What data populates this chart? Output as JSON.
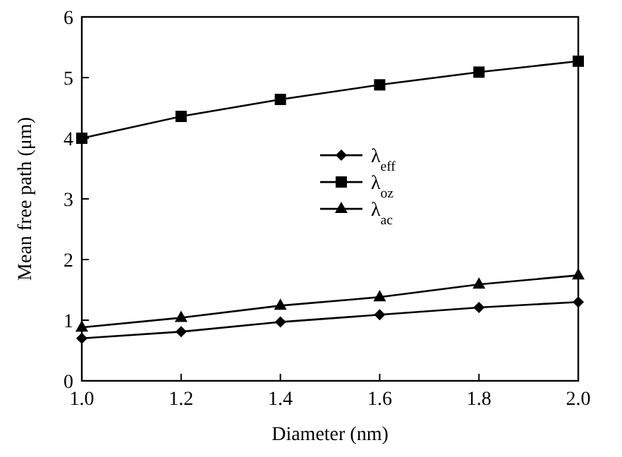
{
  "chart_data": {
    "type": "line",
    "xlabel": "Diameter (nm)",
    "ylabel": "Mean free path (μm)",
    "x": [
      1.0,
      1.2,
      1.4,
      1.6,
      1.8,
      2.0
    ],
    "xlim": [
      1.0,
      2.0
    ],
    "xticks": [
      {
        "value": 1.0,
        "label": "1.0"
      },
      {
        "value": 1.2,
        "label": "1.2"
      },
      {
        "value": 1.4,
        "label": "1.4"
      },
      {
        "value": 1.6,
        "label": "1.6"
      },
      {
        "value": 1.8,
        "label": "1.8"
      },
      {
        "value": 2.0,
        "label": "2.0"
      }
    ],
    "ylim": [
      0,
      6
    ],
    "yticks": [
      0,
      1,
      2,
      3,
      4,
      5,
      6
    ],
    "series": [
      {
        "name": "λ$_{eff}$",
        "color": "#000000",
        "marker": "diamond",
        "values": [
          0.7,
          0.81,
          0.97,
          1.09,
          1.21,
          1.3
        ]
      },
      {
        "name": "λ$_{oz}$",
        "color": "#000000",
        "marker": "square",
        "values": [
          4.0,
          4.36,
          4.64,
          4.88,
          5.09,
          5.27
        ]
      },
      {
        "name": "λ$_{ac}$",
        "color": "#000000",
        "marker": "triangle",
        "values": [
          0.88,
          1.04,
          1.24,
          1.38,
          1.59,
          1.74
        ]
      }
    ],
    "legend": "center",
    "grid": false,
    "line_style": "solid"
  }
}
